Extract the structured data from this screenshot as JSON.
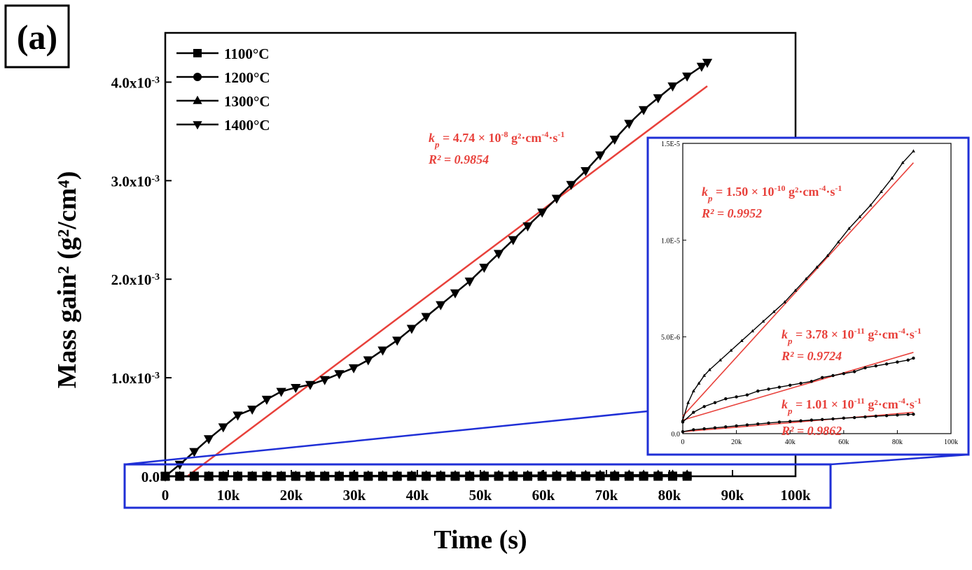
{
  "panel_label": "(a)",
  "chart_data": {
    "type": "line",
    "xlabel": "Time (s)",
    "ylabel": "Mass gain² (g²/cm⁴)",
    "xlim": [
      0,
      100000
    ],
    "ylim": [
      0,
      0.0045
    ],
    "x_ticks": [
      "0",
      "10k",
      "20k",
      "30k",
      "40k",
      "50k",
      "60k",
      "70k",
      "80k",
      "90k",
      "100k"
    ],
    "y_ticks": [
      "0.0",
      "1.0x10-3",
      "2.0x10-3",
      "3.0x10-3",
      "4.0x10-3"
    ],
    "legend_position": "top-left",
    "legend": [
      {
        "name": "1100°C",
        "marker": "square"
      },
      {
        "name": "1200°C",
        "marker": "circle"
      },
      {
        "name": "1300°C",
        "marker": "triangle-up"
      },
      {
        "name": "1400°C",
        "marker": "triangle-down"
      }
    ],
    "series": [
      {
        "name": "1400°C",
        "marker": "triangle-down",
        "x": [
          0,
          2300,
          4600,
          6900,
          9200,
          11500,
          13800,
          16100,
          18400,
          20700,
          23000,
          25300,
          27600,
          29900,
          32200,
          34500,
          36800,
          39100,
          41400,
          43700,
          46000,
          48300,
          50600,
          52900,
          55200,
          57500,
          59800,
          62100,
          64400,
          66700,
          69000,
          71300,
          73600,
          75900,
          78200,
          80500,
          82800,
          85100,
          86000
        ],
        "y": [
          0.0,
          0.00012,
          0.00025,
          0.00038,
          0.0005,
          0.00062,
          0.00068,
          0.00078,
          0.00086,
          0.0009,
          0.00093,
          0.00098,
          0.00104,
          0.0011,
          0.00118,
          0.00128,
          0.00138,
          0.0015,
          0.00162,
          0.00174,
          0.00186,
          0.00198,
          0.00212,
          0.00226,
          0.0024,
          0.00254,
          0.00268,
          0.00282,
          0.00296,
          0.0031,
          0.00326,
          0.00342,
          0.00358,
          0.00372,
          0.00384,
          0.00396,
          0.00406,
          0.00416,
          0.0042
        ]
      },
      {
        "name": "1300°C",
        "marker": "triangle-up",
        "x": [
          0,
          85000
        ],
        "y": [
          0.0,
          1.45e-05
        ]
      },
      {
        "name": "1200°C",
        "marker": "circle",
        "x": [
          0,
          85000
        ],
        "y": [
          0.0,
          3.9e-06
        ]
      },
      {
        "name": "1100°C",
        "marker": "square",
        "x": [
          0,
          85000
        ],
        "y": [
          0.0,
          1e-06
        ]
      }
    ],
    "fit": {
      "x": [
        3500,
        86000
      ],
      "y": [
        0.0,
        0.00396
      ],
      "color": "#e8413b"
    },
    "annotation": {
      "kp": "k",
      "kp_sub": "p",
      "kp_value": " = 4.74 × 10",
      "kp_exp": "-8",
      "kp_units": " g²·cm",
      "kp_units_exp": "-4",
      "kp_units_tail": "·s",
      "kp_units_tail_exp": "-1",
      "r2": "R² = 0.9854"
    },
    "inset": {
      "xlim": [
        0,
        100000
      ],
      "ylim": [
        0,
        1.5e-05
      ],
      "x_ticks": [
        "0",
        "20k",
        "40k",
        "60k",
        "80k",
        "100k"
      ],
      "y_ticks": [
        "0.0",
        "5.0E-6",
        "1.0E-5",
        "1.5E-5"
      ],
      "series": [
        {
          "name": "1300°C",
          "x": [
            0,
            2000,
            4000,
            6000,
            8000,
            10000,
            14000,
            18000,
            22000,
            26000,
            30000,
            34000,
            38000,
            42000,
            46000,
            50000,
            54000,
            58000,
            62000,
            66000,
            70000,
            74000,
            78000,
            82000,
            86000
          ],
          "y": [
            7e-07,
            1.6e-06,
            2.2e-06,
            2.6e-06,
            3e-06,
            3.3e-06,
            3.8e-06,
            4.3e-06,
            4.8e-06,
            5.3e-06,
            5.8e-06,
            6.3e-06,
            6.8e-06,
            7.4e-06,
            8e-06,
            8.6e-06,
            9.2e-06,
            9.9e-06,
            1.06e-05,
            1.12e-05,
            1.18e-05,
            1.25e-05,
            1.32e-05,
            1.4e-05,
            1.46e-05
          ]
        },
        {
          "name": "1200°C",
          "x": [
            0,
            4000,
            8000,
            12000,
            16000,
            20000,
            24000,
            28000,
            32000,
            36000,
            40000,
            44000,
            48000,
            52000,
            56000,
            60000,
            64000,
            68000,
            72000,
            76000,
            80000,
            84000,
            86000
          ],
          "y": [
            6e-07,
            1.1e-06,
            1.4e-06,
            1.6e-06,
            1.8e-06,
            1.9e-06,
            2e-06,
            2.2e-06,
            2.3e-06,
            2.4e-06,
            2.5e-06,
            2.6e-06,
            2.7e-06,
            2.9e-06,
            3e-06,
            3.1e-06,
            3.2e-06,
            3.4e-06,
            3.5e-06,
            3.6e-06,
            3.7e-06,
            3.8e-06,
            3.9e-06
          ]
        },
        {
          "name": "1100°C",
          "x": [
            0,
            4000,
            8000,
            12000,
            16000,
            20000,
            24000,
            28000,
            32000,
            36000,
            40000,
            44000,
            48000,
            52000,
            56000,
            60000,
            64000,
            68000,
            72000,
            76000,
            80000,
            84000,
            86000
          ],
          "y": [
            1e-07,
            2e-07,
            2.5e-07,
            3e-07,
            3.5e-07,
            4e-07,
            4.5e-07,
            5e-07,
            5.5e-07,
            6e-07,
            6.3e-07,
            6.6e-07,
            7e-07,
            7.3e-07,
            7.6e-07,
            8e-07,
            8.3e-07,
            8.6e-07,
            9e-07,
            9.3e-07,
            9.6e-07,
            9.9e-07,
            1e-06
          ]
        }
      ],
      "fits": [
        {
          "x": [
            0,
            86000
          ],
          "y": [
            9e-07,
            1.4e-05
          ]
        },
        {
          "x": [
            0,
            86000
          ],
          "y": [
            7e-07,
            4.2e-06
          ]
        },
        {
          "x": [
            0,
            86000
          ],
          "y": [
            1e-07,
            1.1e-06
          ]
        }
      ],
      "annotations": [
        {
          "kp": "k",
          "kp_sub": "p",
          "kp_value": " = 1.50 × 10",
          "kp_exp": "-10",
          "kp_units": " g²·cm",
          "kp_units_exp": "-4",
          "kp_units_tail": "·s",
          "kp_units_tail_exp": "-1",
          "r2": "R² = 0.9952"
        },
        {
          "kp": "k",
          "kp_sub": "p",
          "kp_value": " = 3.78 × 10",
          "kp_exp": "-11",
          "kp_units": " g²·cm",
          "kp_units_exp": "-4",
          "kp_units_tail": "·s",
          "kp_units_tail_exp": "-1",
          "r2": "R² = 0.9724"
        },
        {
          "kp": "k",
          "kp_sub": "p",
          "kp_value": " = 1.01 × 10",
          "kp_exp": "-11",
          "kp_units": " g²·cm",
          "kp_units_exp": "-4",
          "kp_units_tail": "·s",
          "kp_units_tail_exp": "-1",
          "r2": "R² = 0.9862"
        }
      ]
    },
    "colors": {
      "data": "#000000",
      "fit": "#e8413b",
      "zoom_box": "#1f2fd6"
    }
  }
}
